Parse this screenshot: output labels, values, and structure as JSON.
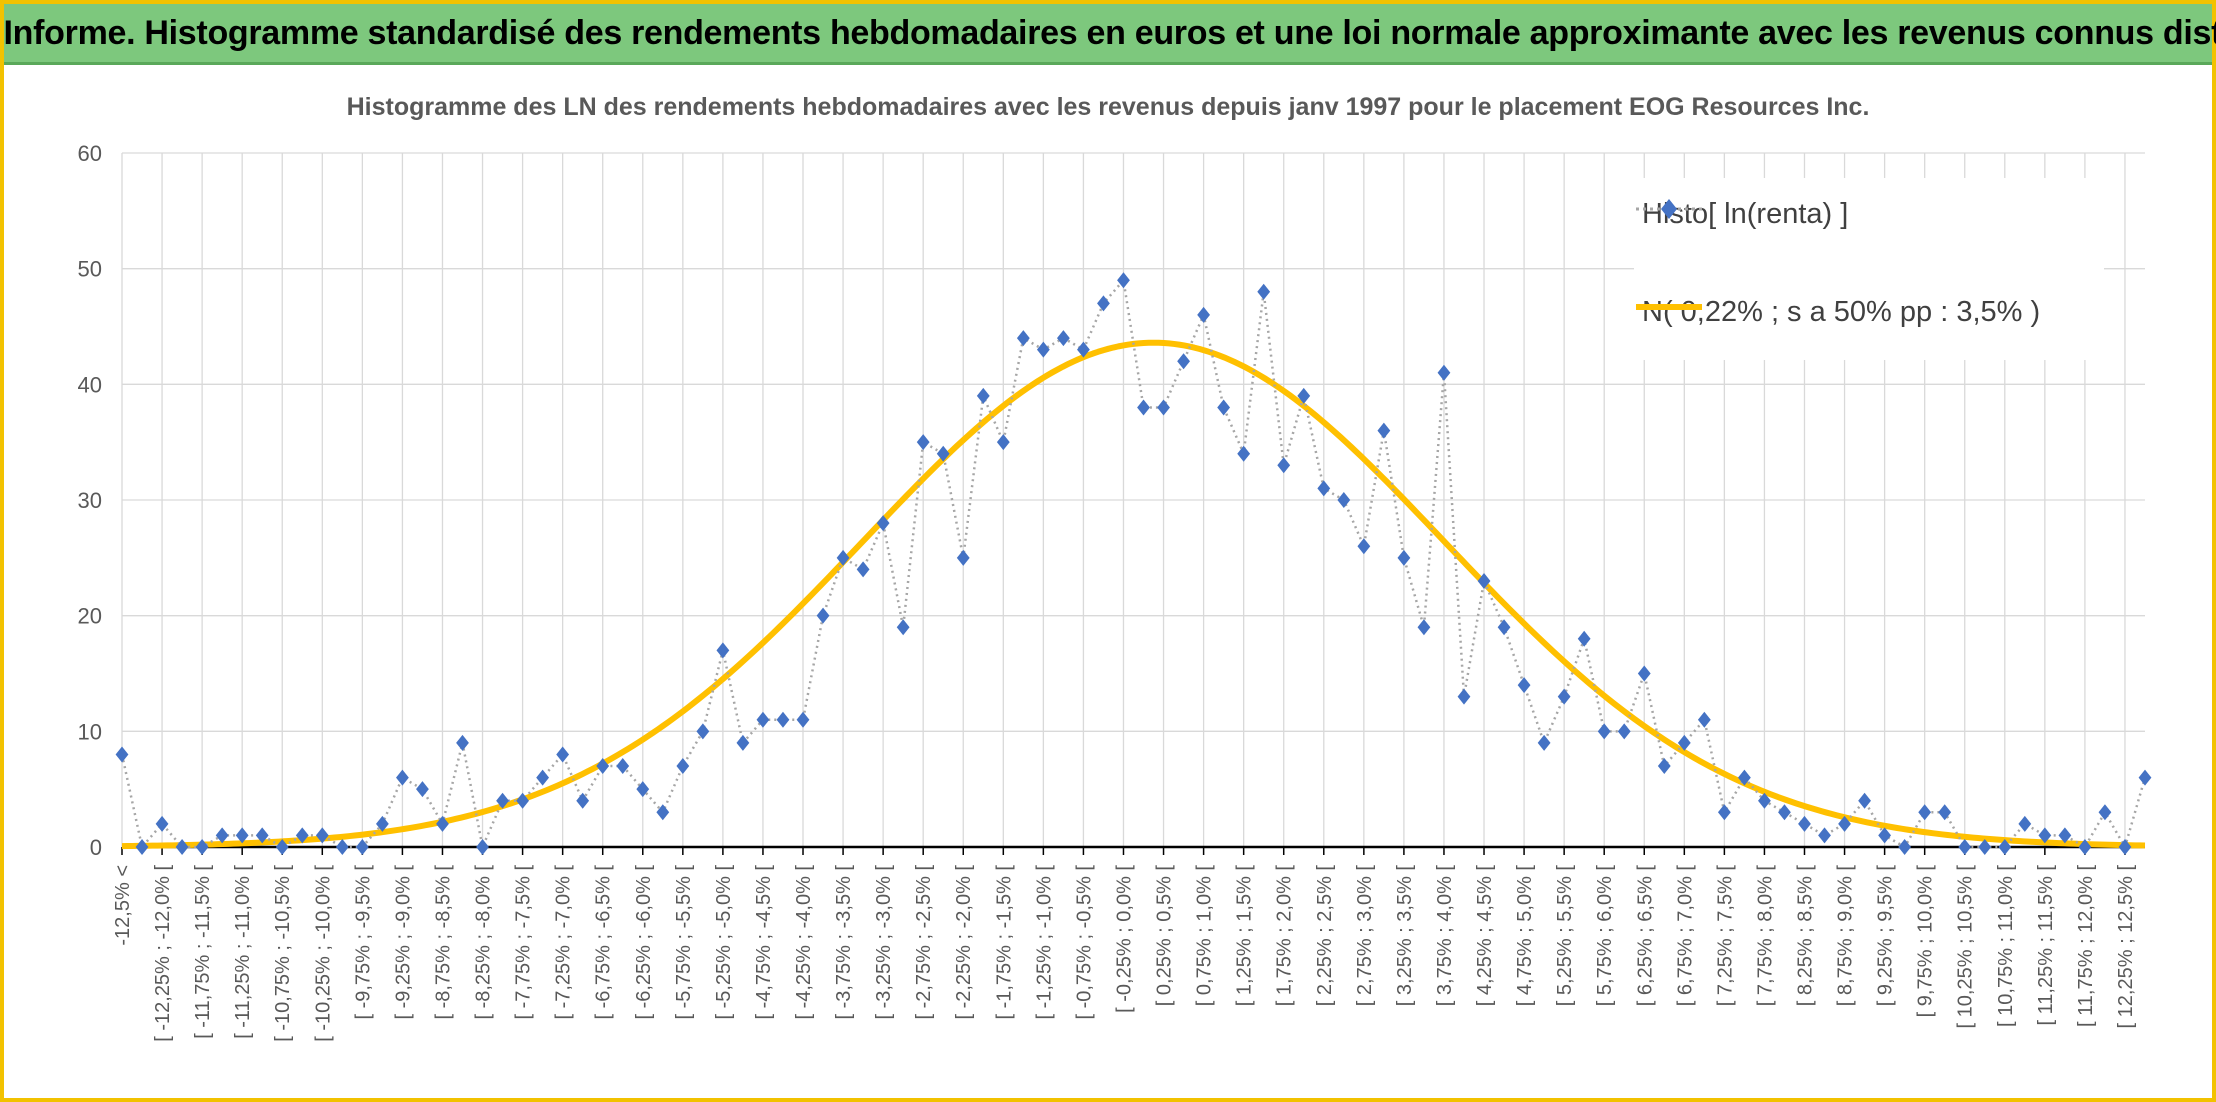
{
  "header": {
    "banner": "ADAM Informe. Histogramme standardisé des rendements hebdomadaires en euros et une loi normale approximante avec les revenus connus distribués"
  },
  "colors": {
    "banner_bg": "#7dc87d",
    "frame": "#f2c200",
    "series_points": "#4472c4",
    "connector": "#a6a6a6",
    "normal_curve": "#ffc000",
    "grid": "#d9d9d9"
  },
  "chart_data": {
    "type": "line",
    "title": "Histogramme des LN des rendements hebdomadaires avec les revenus depuis janv 1997 pour le placement EOG Resources Inc.",
    "xlabel": "",
    "ylabel": "",
    "ylim": [
      0,
      60
    ],
    "yticks": [
      0,
      10,
      20,
      30,
      40,
      50,
      60
    ],
    "grid": true,
    "legend_position": "top-right",
    "x_tick_labels": [
      "-12,5% <",
      "[ -12,25% ; -12,0% [",
      "[ -11,75% ; -11,5% [",
      "[ -11,25% ; -11,0% [",
      "[ -10,75% ; -10,5% [",
      "[ -10,25% ; -10,0% [",
      "[ -9,75% ; -9,5% [",
      "[ -9,25% ; -9,0% [",
      "[ -8,75% ; -8,5% [",
      "[ -8,25% ; -8,0% [",
      "[ -7,75% ; -7,5% [",
      "[ -7,25% ; -7,0% [",
      "[ -6,75% ; -6,5% [",
      "[ -6,25% ; -6,0% [",
      "[ -5,75% ; -5,5% [",
      "[ -5,25% ; -5,0% [",
      "[ -4,75% ; -4,5% [",
      "[ -4,25% ; -4,0% [",
      "[ -3,75% ; -3,5% [",
      "[ -3,25% ; -3,0% [",
      "[ -2,75% ; -2,5% [",
      "[ -2,25% ; -2,0% [",
      "[ -1,75% ; -1,5% [",
      "[ -1,25% ; -1,0% [",
      "[ -0,75% ; -0,5% [",
      "[ -0,25% ; 0,0% [",
      "[ 0,25% ; 0,5% [",
      "[ 0,75% ; 1,0% [",
      "[ 1,25% ; 1,5% [",
      "[ 1,75% ; 2,0% [",
      "[ 2,25% ; 2,5% [",
      "[ 2,75% ; 3,0% [",
      "[ 3,25% ; 3,5% [",
      "[ 3,75% ; 4,0% [",
      "[ 4,25% ; 4,5% [",
      "[ 4,75% ; 5,0% [",
      "[ 5,25% ; 5,5% [",
      "[ 5,75% ; 6,0% [",
      "[ 6,25% ; 6,5% [",
      "[ 6,75% ; 7,0% [",
      "[ 7,25% ; 7,5% [",
      "[ 7,75% ; 8,0% [",
      "[ 8,25% ; 8,5% [",
      "[ 8,75% ; 9,0% [",
      "[ 9,25% ; 9,5% [",
      "[ 9,75% ; 10,0% [",
      "[ 10,25% ; 10,5% [",
      "[ 10,75% ; 11,0% [",
      "[ 11,25% ; 11,5% [",
      "[ 11,75% ; 12,0% [",
      "[ 12,25% ; 12,5% ["
    ],
    "series": [
      {
        "name": "Histo[ ln(renta) ]",
        "style": "diamond markers, grey dotted connector",
        "values": [
          8,
          0,
          2,
          0,
          0,
          1,
          1,
          1,
          0,
          1,
          1,
          0,
          0,
          2,
          6,
          5,
          2,
          9,
          0,
          4,
          4,
          6,
          8,
          4,
          7,
          7,
          5,
          3,
          7,
          10,
          17,
          9,
          11,
          11,
          11,
          20,
          25,
          24,
          28,
          19,
          35,
          34,
          25,
          39,
          35,
          44,
          43,
          44,
          43,
          47,
          49,
          38,
          38,
          42,
          46,
          38,
          34,
          48,
          33,
          39,
          31,
          30,
          26,
          36,
          25,
          19,
          41,
          13,
          23,
          19,
          14,
          9,
          13,
          18,
          10,
          10,
          15,
          7,
          9,
          11,
          3,
          6,
          4,
          3,
          2,
          1,
          2,
          4,
          1,
          0,
          3,
          3,
          0,
          0,
          0,
          2,
          1,
          1,
          0,
          3,
          0,
          6
        ]
      },
      {
        "name": "N( 0,22% ; s a 50% pp : 3,5% )",
        "style": "thick yellow line",
        "mean_bin_index": 51.5,
        "peak": 43.6,
        "sigma_bins": 14.5
      }
    ]
  }
}
